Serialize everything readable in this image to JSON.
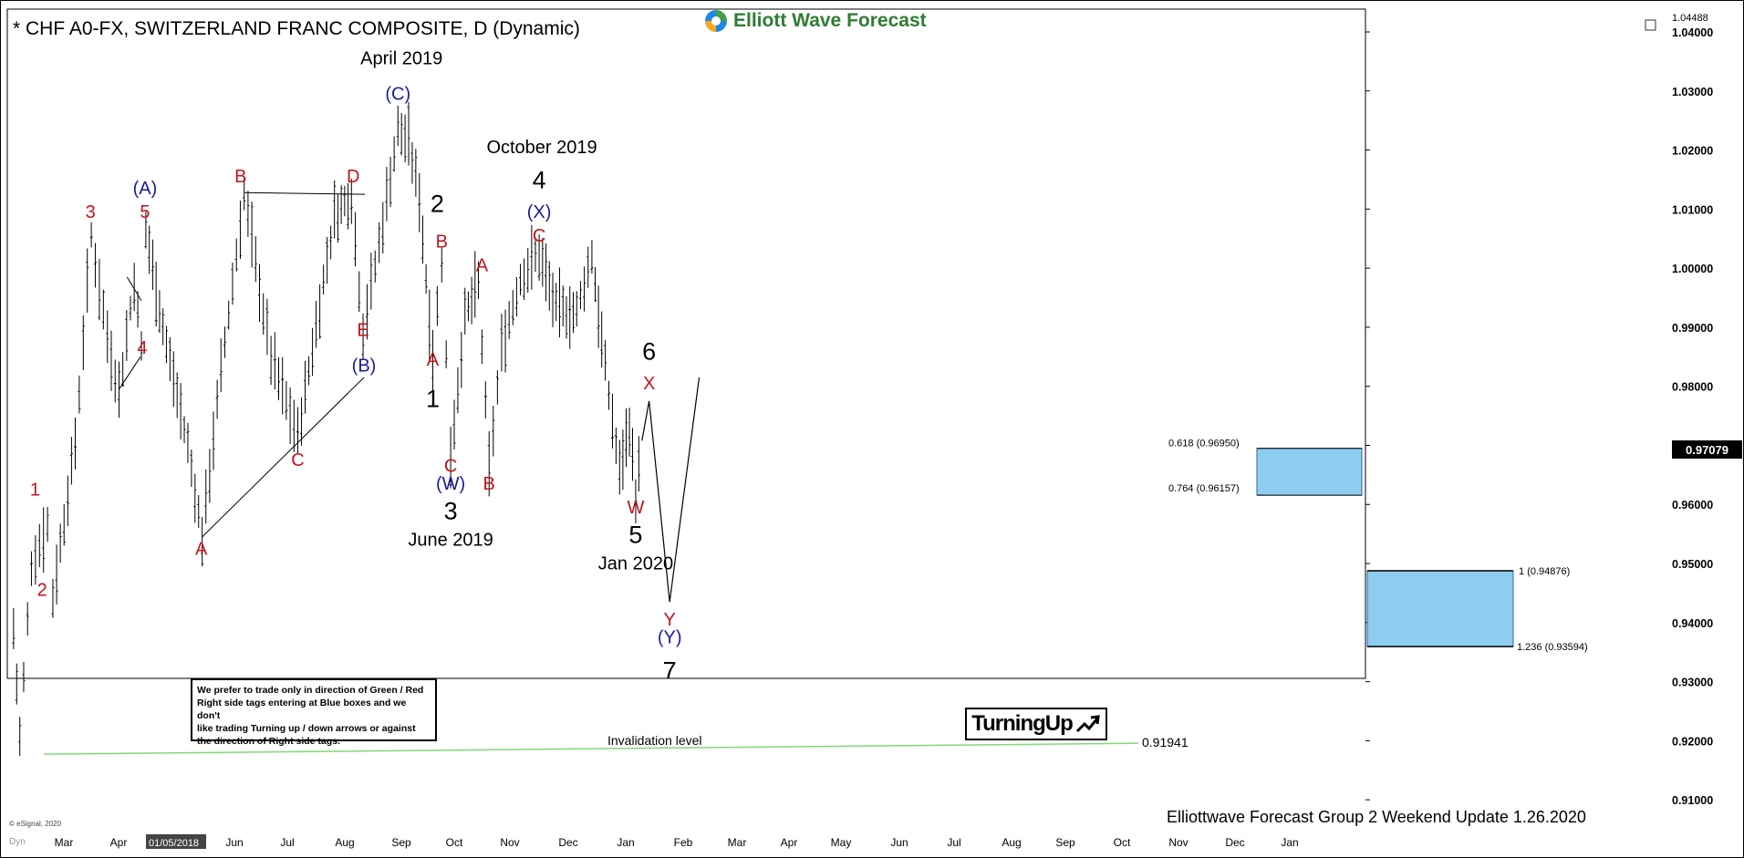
{
  "header": {
    "title": "* CHF A0-FX, SWITZERLAND FRANC COMPOSITE, D (Dynamic)",
    "brand": "Elliott Wave Forecast",
    "footer": "Elliottwave Forecast Group 2 Weekend Update 1.26.2020",
    "copyright": "© eSignal, 2020",
    "top_right_value": "1.04488",
    "current_price": "0.97079",
    "date_tag": "01/05/2018",
    "dyn_label": "Dyn"
  },
  "note_box": {
    "lines": [
      "We prefer to trade only in direction of Green / Red",
      "Right side tags entering at Blue boxes and we don't",
      "like trading Turning up / down arrows or against",
      "the direction of Right side tags."
    ]
  },
  "turning_up": {
    "label": "TurningUp",
    "icon": "arrow-up-right-icon"
  },
  "colors": {
    "red": "#c0141b",
    "blue": "#1a1a9c",
    "black": "#000000",
    "box": "#8ecdf0",
    "green_line": "#7ddc74"
  },
  "chart_data": {
    "type": "candlestick-ohlc",
    "title": "* CHF A0-FX, SWITZERLAND FRANC COMPOSITE, D (Dynamic)",
    "x_labels": [
      "Mar",
      "Apr",
      "01/05/2018",
      "Jun",
      "Jul",
      "Aug",
      "Sep",
      "Oct",
      "Nov",
      "Dec",
      "Jan",
      "Feb",
      "Mar",
      "Apr",
      "May",
      "Jun",
      "Jul",
      "Aug",
      "Sep",
      "Oct",
      "Nov",
      "Dec",
      "Jan"
    ],
    "y_ticks": [
      "1.04000",
      "1.03000",
      "1.02000",
      "1.01000",
      "1.00000",
      "0.99000",
      "0.98000",
      "0.97000",
      "0.96000",
      "0.95000",
      "0.94000",
      "0.93000",
      "0.92000",
      "0.91000"
    ],
    "ylim": [
      0.9035,
      1.0449
    ],
    "price_path": [
      [
        "2018-02-20",
        0.939
      ],
      [
        "2018-02-27",
        0.9205
      ],
      [
        "2018-03-12",
        0.95
      ],
      [
        "2018-03-30",
        0.9565
      ],
      [
        "2018-04-05",
        0.9445
      ],
      [
        "2018-04-30",
        0.9705
      ],
      [
        "2018-05-18",
        1.0055
      ],
      [
        "2018-06-05",
        0.9885
      ],
      [
        "2018-06-18",
        0.979
      ],
      [
        "2018-07-05",
        0.998
      ],
      [
        "2018-07-13",
        0.9865
      ],
      [
        "2018-07-18",
        1.0065
      ],
      [
        "2018-08-10",
        0.987
      ],
      [
        "2018-09-03",
        0.97
      ],
      [
        "2018-09-19",
        0.9545
      ],
      [
        "2018-10-10",
        0.9825
      ],
      [
        "2018-11-05",
        1.0125
      ],
      [
        "2018-12-05",
        0.985
      ],
      [
        "2019-01-04",
        0.9715
      ],
      [
        "2019-02-14",
        1.009
      ],
      [
        "2019-03-05",
        1.0125
      ],
      [
        "2019-03-18",
        0.9895
      ],
      [
        "2019-04-05",
        1.004
      ],
      [
        "2019-04-26",
        1.0235
      ],
      [
        "2019-05-08",
        1.0215
      ],
      [
        "2019-05-20",
        1.012
      ],
      [
        "2019-06-04",
        0.985
      ],
      [
        "2019-06-14",
        1.0015
      ],
      [
        "2019-06-24",
        0.9685
      ],
      [
        "2019-07-10",
        0.9915
      ],
      [
        "2019-07-25",
        0.9975
      ],
      [
        "2019-08-06",
        0.966
      ],
      [
        "2019-08-20",
        0.9865
      ],
      [
        "2019-09-10",
        0.9985
      ],
      [
        "2019-10-01",
        1.0025
      ],
      [
        "2019-10-20",
        0.993
      ],
      [
        "2019-11-12",
        0.9925
      ],
      [
        "2019-11-29",
        1.0025
      ],
      [
        "2019-12-10",
        0.9875
      ],
      [
        "2019-12-30",
        0.9655
      ],
      [
        "2020-01-10",
        0.9735
      ],
      [
        "2020-01-17",
        0.9615
      ],
      [
        "2020-01-24",
        0.9708
      ]
    ],
    "projection": [
      [
        "2020-01-24",
        0.9708
      ],
      [
        "2020-02-01",
        0.9775
      ],
      [
        "2020-02-24",
        0.9435
      ],
      [
        "2020-03-28",
        0.9815
      ]
    ],
    "boxes": [
      {
        "label_top": "0.618 (0.96950)",
        "label_bottom": "0.764 (0.96157)",
        "top": 0.9695,
        "bottom": 0.96157
      },
      {
        "label_top": "1 (0.94876)",
        "label_bottom": "1.236 (0.93594)",
        "top": 0.94876,
        "bottom": 0.93594
      }
    ],
    "invalidation": {
      "label": "Invalidation level",
      "value_label": "0.91941",
      "value": 0.91941
    },
    "wave_labels": [
      {
        "text": "1",
        "color": "red",
        "date": "2018-03-16",
        "y": 0.9615
      },
      {
        "text": "2",
        "color": "red",
        "date": "2018-03-24",
        "y": 0.9445
      },
      {
        "text": "3",
        "color": "red",
        "date": "2018-05-17",
        "y": 1.0085
      },
      {
        "text": "4",
        "color": "red",
        "date": "2018-07-14",
        "y": 0.9855
      },
      {
        "text": "5",
        "color": "red",
        "date": "2018-07-17",
        "y": 1.0085
      },
      {
        "text": "(A)",
        "color": "blue",
        "date": "2018-07-17",
        "y": 1.0125
      },
      {
        "text": "A",
        "color": "red",
        "date": "2018-09-18",
        "y": 0.9515
      },
      {
        "text": "B",
        "color": "red",
        "date": "2018-11-01",
        "y": 1.0145
      },
      {
        "text": "C",
        "color": "red",
        "date": "2019-01-04",
        "y": 0.9665
      },
      {
        "text": "D",
        "color": "red",
        "date": "2019-03-07",
        "y": 1.0145
      },
      {
        "text": "E",
        "color": "red",
        "date": "2019-03-18",
        "y": 0.9885
      },
      {
        "text": "(B)",
        "color": "blue",
        "date": "2019-03-19",
        "y": 0.9825
      },
      {
        "text": "April 2019",
        "color": "black",
        "date": "2019-04-30",
        "y": 1.0345
      },
      {
        "text": "(C)",
        "color": "blue",
        "date": "2019-04-26",
        "y": 1.0285
      },
      {
        "text": "2",
        "color": "black",
        "date": "2019-06-09",
        "y": 1.0095
      },
      {
        "text": "B",
        "color": "red",
        "date": "2019-06-14",
        "y": 1.0035
      },
      {
        "text": "A",
        "color": "red",
        "date": "2019-06-04",
        "y": 0.9835
      },
      {
        "text": "1",
        "color": "black",
        "date": "2019-06-04",
        "y": 0.9765
      },
      {
        "text": "C",
        "color": "red",
        "date": "2019-06-24",
        "y": 0.9655
      },
      {
        "text": "(W)",
        "color": "blue",
        "date": "2019-06-24",
        "y": 0.9625
      },
      {
        "text": "3",
        "color": "black",
        "date": "2019-06-24",
        "y": 0.9575
      },
      {
        "text": "June 2019",
        "color": "black",
        "date": "2019-06-24",
        "y": 0.953
      },
      {
        "text": "A",
        "color": "red",
        "date": "2019-07-29",
        "y": 0.9995
      },
      {
        "text": "B",
        "color": "red",
        "date": "2019-08-06",
        "y": 0.9625
      },
      {
        "text": "October 2019",
        "color": "black",
        "date": "2019-10-04",
        "y": 1.0195
      },
      {
        "text": "4",
        "color": "black",
        "date": "2019-10-01",
        "y": 1.0135
      },
      {
        "text": "(X)",
        "color": "blue",
        "date": "2019-10-01",
        "y": 1.0085
      },
      {
        "text": "C",
        "color": "red",
        "date": "2019-10-01",
        "y": 1.0045
      },
      {
        "text": "6",
        "color": "black",
        "date": "2020-02-01",
        "y": 0.9845
      },
      {
        "text": "X",
        "color": "red",
        "date": "2020-02-01",
        "y": 0.9795
      },
      {
        "text": "W",
        "color": "red",
        "date": "2020-01-17",
        "y": 0.9585
      },
      {
        "text": "5",
        "color": "black",
        "date": "2020-01-17",
        "y": 0.9535
      },
      {
        "text": "Jan 2020",
        "color": "black",
        "date": "2020-01-17",
        "y": 0.949
      },
      {
        "text": "Y",
        "color": "red",
        "date": "2020-02-24",
        "y": 0.9395
      },
      {
        "text": "(Y)",
        "color": "blue",
        "date": "2020-02-24",
        "y": 0.9365
      },
      {
        "text": "7",
        "color": "black",
        "date": "2020-02-24",
        "y": 0.9305
      }
    ]
  }
}
